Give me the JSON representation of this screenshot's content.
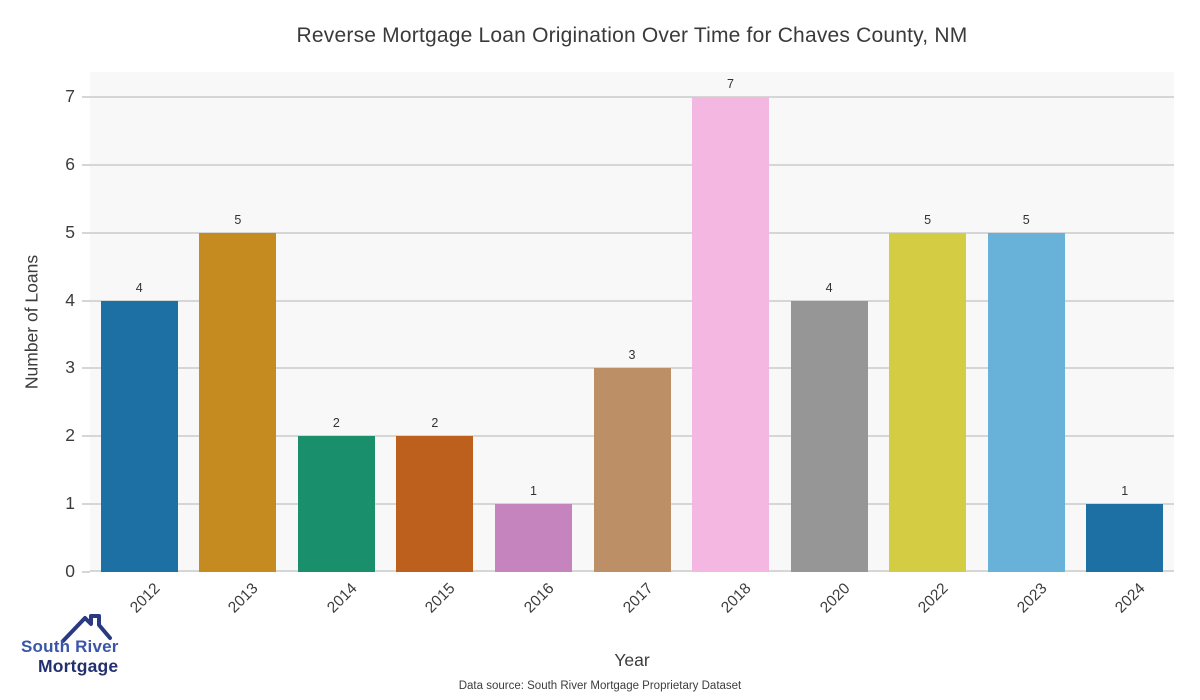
{
  "title": "Reverse Mortgage Loan Origination Over Time for Chaves County, NM",
  "chart_data": {
    "type": "bar",
    "title": "Reverse Mortgage Loan Origination Over Time for Chaves County, NM",
    "categories": [
      "2012",
      "2013",
      "2014",
      "2015",
      "2016",
      "2017",
      "2018",
      "2020",
      "2022",
      "2023",
      "2024"
    ],
    "values": [
      4,
      5,
      2,
      2,
      1,
      3,
      7,
      4,
      5,
      5,
      1
    ],
    "bar_colors": [
      "#1c70a4",
      "#c68b20",
      "#19906b",
      "#bd5f1d",
      "#c584be",
      "#bd8f66",
      "#f3b7e1",
      "#969696",
      "#d4cc42",
      "#68b1d8",
      "#1c70a4"
    ],
    "xlabel": "Year",
    "ylabel": "Number of Loans",
    "yticks": [
      0,
      1,
      2,
      3,
      4,
      5,
      6,
      7
    ],
    "ylim": [
      0,
      7.37
    ],
    "grid": "horizontal",
    "gridline_color": "#d6d6d6",
    "plot_background": "#f8f8f8",
    "value_labels_shown": true,
    "legend": "none",
    "x_tick_rotation_deg": 45
  },
  "footer": {
    "data_source": "Data source: South River Mortgage Proprietary Dataset"
  },
  "logo": {
    "line1": "South River",
    "line2": "Mortgage",
    "line1_color": "#3a56a8",
    "line2_color": "#233070",
    "roof_color": "#2a3a80"
  }
}
